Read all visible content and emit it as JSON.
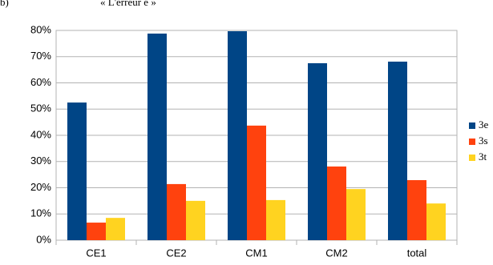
{
  "chart_data": {
    "type": "bar",
    "label": "b)",
    "title": "« L'erreur é »",
    "categories": [
      "CE1",
      "CE2",
      "CM1",
      "CM2",
      "total"
    ],
    "series": [
      {
        "name": "3e",
        "color": "#004586",
        "values": [
          52.5,
          78.8,
          79.7,
          67.5,
          68.1
        ]
      },
      {
        "name": "3s",
        "color": "#ff420e",
        "values": [
          6.7,
          21.4,
          43.7,
          28.1,
          22.9
        ]
      },
      {
        "name": "3t",
        "color": "#ffd320",
        "values": [
          8.5,
          15,
          15.3,
          19.5,
          14
        ]
      }
    ],
    "ylim": [
      0,
      80
    ],
    "yticks": [
      {
        "value": 0,
        "label": "0%"
      },
      {
        "value": 10,
        "label": "10%"
      },
      {
        "value": 20,
        "label": "20%"
      },
      {
        "value": 30,
        "label": "30%"
      },
      {
        "value": 40,
        "label": "40%"
      },
      {
        "value": 50,
        "label": "50%"
      },
      {
        "value": 60,
        "label": "60%"
      },
      {
        "value": 70,
        "label": "70%"
      },
      {
        "value": 80,
        "label": "80%"
      }
    ],
    "grid": true,
    "legend": "right"
  }
}
